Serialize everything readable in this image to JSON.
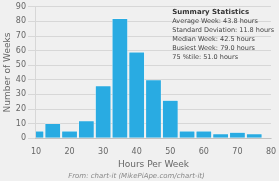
{
  "chart_data": {
    "type": "bar",
    "x": [
      10,
      15,
      20,
      25,
      30,
      35,
      40,
      45,
      50,
      55,
      60,
      65,
      70,
      75
    ],
    "values": [
      5,
      10,
      5,
      12,
      36,
      82,
      59,
      40,
      26,
      5,
      5,
      3,
      4,
      3
    ],
    "color": "#29ABE2",
    "xlabel": "Hours Per Week",
    "ylabel": "Number of Weeks",
    "xlim": [
      10,
      80
    ],
    "ylim": [
      0,
      90
    ],
    "xticks": [
      10,
      20,
      30,
      40,
      50,
      60,
      70,
      80
    ],
    "yticks": [
      0,
      10,
      20,
      30,
      40,
      50,
      60,
      70,
      80,
      90
    ],
    "grid": true,
    "annotations": [
      "Summary Statistics",
      "Average Week: 43.8 hours",
      "Standard Deviation: 11.8 hours",
      "Median Week: 42.5 hours",
      "Busiest Week: 79.0 hours",
      "75 %tile: 51.0 hours"
    ],
    "footer": "From: chart-it (MikePiApe.com/chart-it)"
  }
}
